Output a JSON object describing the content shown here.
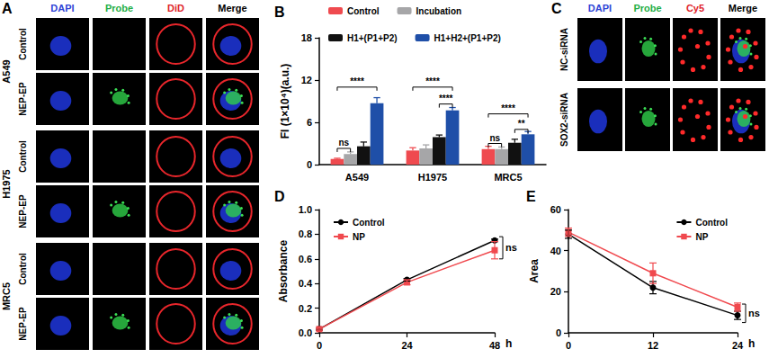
{
  "chart_data": [
    {
      "type": "bar",
      "title": "B",
      "y_label": "FI (1×10⁴)(a.u.)",
      "categories": [
        "A549",
        "H1975",
        "MRC5"
      ],
      "series": [
        {
          "name": "Control",
          "color": "#ef4a4f",
          "values": [
            0.8,
            2.0,
            2.2
          ],
          "errors": [
            0.1,
            0.4,
            0.4
          ]
        },
        {
          "name": "Incubation",
          "color": "#a6a6a8",
          "values": [
            1.5,
            2.3,
            2.2
          ],
          "errors": [
            0.3,
            0.5,
            0.3
          ]
        },
        {
          "name": "H1+(P1+P2)",
          "color": "#111111",
          "values": [
            2.6,
            3.9,
            3.1
          ],
          "errors": [
            0.6,
            0.3,
            0.5
          ]
        },
        {
          "name": "H1+H2+(P1+P2)",
          "color": "#1f4fa8",
          "values": [
            8.7,
            7.7,
            4.3
          ],
          "errors": [
            0.8,
            0.4,
            0.4
          ]
        }
      ],
      "ylim": [
        0,
        18
      ],
      "yticks": [
        0,
        6,
        12,
        18
      ],
      "grid": false,
      "legend": "top",
      "annotations": [
        {
          "text": "ns",
          "category": "A549",
          "from": "Control",
          "to": "Incubation",
          "y": 2.3
        },
        {
          "text": "****",
          "category": "A549",
          "from": "Control",
          "to": "H1+H2+(P1+P2)",
          "y": 11.0
        },
        {
          "text": "****",
          "category": "H1975",
          "from": "Control",
          "to": "H1+H2+(P1+P2)",
          "y": 11.0
        },
        {
          "text": "****",
          "category": "H1975",
          "from": "H1+(P1+P2)",
          "to": "H1+H2+(P1+P2)",
          "y": 8.6
        },
        {
          "text": "ns",
          "category": "MRC5",
          "from": "Control",
          "to": "Incubation",
          "y": 3.0
        },
        {
          "text": "****",
          "category": "MRC5",
          "from": "Control",
          "to": "H1+H2+(P1+P2)",
          "y": 7.2
        },
        {
          "text": "**",
          "category": "MRC5",
          "from": "H1+(P1+P2)",
          "to": "H1+H2+(P1+P2)",
          "y": 5.0
        }
      ]
    },
    {
      "type": "line",
      "title": "D",
      "x_label": "h",
      "y_label": "Absorbance",
      "x": [
        0,
        24,
        48
      ],
      "series": [
        {
          "name": "Control",
          "color": "#000000",
          "marker": "circle",
          "values": [
            0.03,
            0.43,
            0.75
          ],
          "errors": [
            0.01,
            0.01,
            0.01
          ]
        },
        {
          "name": "NP",
          "color": "#f0494e",
          "marker": "square",
          "values": [
            0.03,
            0.41,
            0.67
          ],
          "errors": [
            0.01,
            0.02,
            0.07
          ]
        }
      ],
      "xlim": [
        0,
        48
      ],
      "xticks": [
        0,
        24,
        48
      ],
      "ylim": [
        0,
        1.0
      ],
      "yticks": [
        {
          "value": 0,
          "label": "0.0"
        },
        {
          "value": 0.2,
          "label": "0.2"
        },
        {
          "value": 0.4,
          "label": "0.4"
        },
        {
          "value": 0.6,
          "label": "0.6"
        },
        {
          "value": 0.8,
          "label": "0.8"
        },
        {
          "value": 1.0,
          "label": "1.0"
        }
      ],
      "grid": false,
      "legend": "top-left",
      "annotations": [
        {
          "text": "ns",
          "x": 48,
          "y_from": 0.6,
          "y_to": 0.78
        }
      ]
    },
    {
      "type": "line",
      "title": "E",
      "x_label": "h",
      "y_label": "Area",
      "x": [
        0,
        12,
        24
      ],
      "series": [
        {
          "name": "Control",
          "color": "#000000",
          "marker": "circle",
          "values": [
            48,
            22,
            8.5
          ],
          "errors": [
            2,
            3,
            2
          ]
        },
        {
          "name": "NP",
          "color": "#f0494e",
          "marker": "square",
          "values": [
            49,
            29,
            12.5
          ],
          "errors": [
            2,
            5,
            2
          ]
        }
      ],
      "xlim": [
        0,
        24
      ],
      "xticks": [
        0,
        12,
        24
      ],
      "ylim": [
        0,
        60
      ],
      "yticks": [
        0,
        20,
        40,
        60
      ],
      "grid": false,
      "legend": "top-right",
      "annotations": [
        {
          "text": "ns",
          "x": 24,
          "y_from": 5,
          "y_to": 14
        }
      ]
    }
  ],
  "image_panels": [
    {
      "title": "A",
      "columns": [
        {
          "label": "DAPI",
          "color": "#2e44d6"
        },
        {
          "label": "Probe",
          "color": "#1fae45"
        },
        {
          "label": "DiD",
          "color": "#e0242a"
        },
        {
          "label": "Merge",
          "color": "#000000"
        }
      ],
      "groups": [
        {
          "label": "A549",
          "rows": [
            "Control",
            "NEP-EP"
          ]
        },
        {
          "label": "H1975",
          "rows": [
            "Control",
            "NEP-EP"
          ]
        },
        {
          "label": "MRC5",
          "rows": [
            "Control",
            "NEP-EP"
          ]
        }
      ]
    },
    {
      "title": "C",
      "columns": [
        {
          "label": "DAPI",
          "color": "#2e44d6"
        },
        {
          "label": "Probe",
          "color": "#1fae45"
        },
        {
          "label": "Cy5",
          "color": "#e0242a"
        },
        {
          "label": "Merge",
          "color": "#000000"
        }
      ],
      "rows": [
        "NC-siRNA",
        "SOX2-siRNA"
      ]
    }
  ]
}
